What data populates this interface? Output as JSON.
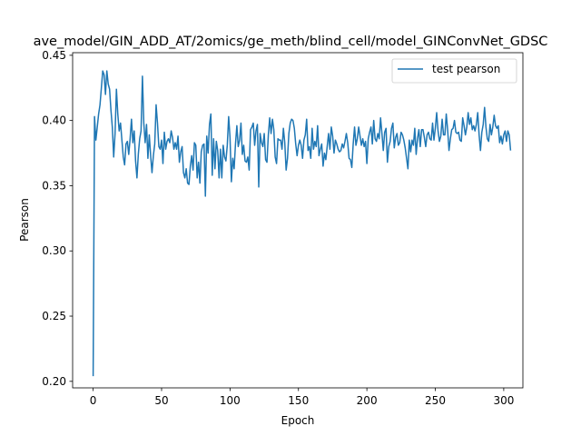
{
  "chart_data": {
    "type": "line",
    "title": "ave_model/GIN_ADD_AT/2omics/ge_meth/blind_cell/model_GINConvNet_GDSC",
    "xlabel": "Epoch",
    "ylabel": "Pearson",
    "xlim": [
      -15,
      314
    ],
    "ylim": [
      0.195,
      0.452
    ],
    "x_ticks": [
      0,
      50,
      100,
      150,
      200,
      250,
      300
    ],
    "x_tick_labels": [
      "0",
      "50",
      "100",
      "150",
      "200",
      "250",
      "300"
    ],
    "y_ticks": [
      0.2,
      0.25,
      0.3,
      0.35,
      0.4,
      0.45
    ],
    "y_tick_labels": [
      "0.20",
      "0.25",
      "0.30",
      "0.35",
      "0.40",
      "0.45"
    ],
    "grid": false,
    "legend_position": "top-right",
    "series": [
      {
        "name": "test pearson",
        "color": "#1f77b4",
        "x_start": 0,
        "x_step": 1,
        "values": [
          0.204,
          0.403,
          0.385,
          0.395,
          0.405,
          0.412,
          0.425,
          0.438,
          0.435,
          0.42,
          0.438,
          0.428,
          0.424,
          0.408,
          0.395,
          0.372,
          0.39,
          0.424,
          0.405,
          0.392,
          0.398,
          0.385,
          0.372,
          0.366,
          0.382,
          0.384,
          0.374,
          0.386,
          0.401,
          0.383,
          0.392,
          0.369,
          0.356,
          0.374,
          0.386,
          0.392,
          0.434,
          0.398,
          0.383,
          0.397,
          0.371,
          0.389,
          0.373,
          0.36,
          0.373,
          0.382,
          0.412,
          0.398,
          0.38,
          0.378,
          0.385,
          0.367,
          0.391,
          0.378,
          0.384,
          0.386,
          0.383,
          0.392,
          0.387,
          0.378,
          0.383,
          0.378,
          0.388,
          0.368,
          0.376,
          0.38,
          0.36,
          0.356,
          0.363,
          0.352,
          0.351,
          0.365,
          0.373,
          0.362,
          0.383,
          0.381,
          0.356,
          0.368,
          0.352,
          0.376,
          0.381,
          0.382,
          0.342,
          0.388,
          0.375,
          0.397,
          0.405,
          0.358,
          0.386,
          0.363,
          0.384,
          0.377,
          0.356,
          0.378,
          0.356,
          0.381,
          0.372,
          0.369,
          0.381,
          0.403,
          0.387,
          0.353,
          0.371,
          0.363,
          0.382,
          0.396,
          0.38,
          0.385,
          0.398,
          0.374,
          0.381,
          0.369,
          0.368,
          0.372,
          0.362,
          0.393,
          0.395,
          0.398,
          0.381,
          0.392,
          0.397,
          0.349,
          0.39,
          0.383,
          0.38,
          0.39,
          0.37,
          0.368,
          0.389,
          0.402,
          0.39,
          0.401,
          0.393,
          0.372,
          0.367,
          0.386,
          0.385,
          0.385,
          0.378,
          0.394,
          0.383,
          0.362,
          0.371,
          0.39,
          0.398,
          0.401,
          0.4,
          0.394,
          0.382,
          0.373,
          0.381,
          0.385,
          0.381,
          0.371,
          0.385,
          0.389,
          0.401,
          0.377,
          0.38,
          0.371,
          0.394,
          0.378,
          0.384,
          0.38,
          0.396,
          0.373,
          0.378,
          0.382,
          0.365,
          0.375,
          0.37,
          0.38,
          0.39,
          0.378,
          0.395,
          0.388,
          0.375,
          0.385,
          0.382,
          0.378,
          0.376,
          0.377,
          0.382,
          0.379,
          0.384,
          0.39,
          0.383,
          0.371,
          0.37,
          0.364,
          0.382,
          0.395,
          0.381,
          0.386,
          0.395,
          0.388,
          0.381,
          0.386,
          0.38,
          0.384,
          0.367,
          0.386,
          0.391,
          0.395,
          0.382,
          0.4,
          0.386,
          0.384,
          0.39,
          0.386,
          0.402,
          0.39,
          0.377,
          0.391,
          0.394,
          0.368,
          0.38,
          0.384,
          0.394,
          0.398,
          0.379,
          0.387,
          0.39,
          0.381,
          0.383,
          0.391,
          0.389,
          0.385,
          0.379,
          0.371,
          0.363,
          0.385,
          0.376,
          0.385,
          0.381,
          0.394,
          0.374,
          0.386,
          0.393,
          0.38,
          0.393,
          0.393,
          0.387,
          0.38,
          0.389,
          0.391,
          0.386,
          0.385,
          0.398,
          0.385,
          0.394,
          0.406,
          0.392,
          0.384,
          0.388,
          0.401,
          0.389,
          0.389,
          0.405,
          0.393,
          0.377,
          0.386,
          0.393,
          0.394,
          0.4,
          0.391,
          0.39,
          0.391,
          0.385,
          0.384,
          0.402,
          0.396,
          0.389,
          0.395,
          0.406,
          0.397,
          0.402,
          0.393,
          0.396,
          0.392,
          0.397,
          0.406,
          0.389,
          0.377,
          0.391,
          0.397,
          0.41,
          0.395,
          0.386,
          0.384,
          0.397,
          0.389,
          0.395,
          0.404,
          0.396,
          0.394,
          0.396,
          0.383,
          0.388,
          0.382,
          0.389,
          0.392,
          0.384,
          0.392,
          0.389,
          0.377
        ]
      }
    ]
  }
}
